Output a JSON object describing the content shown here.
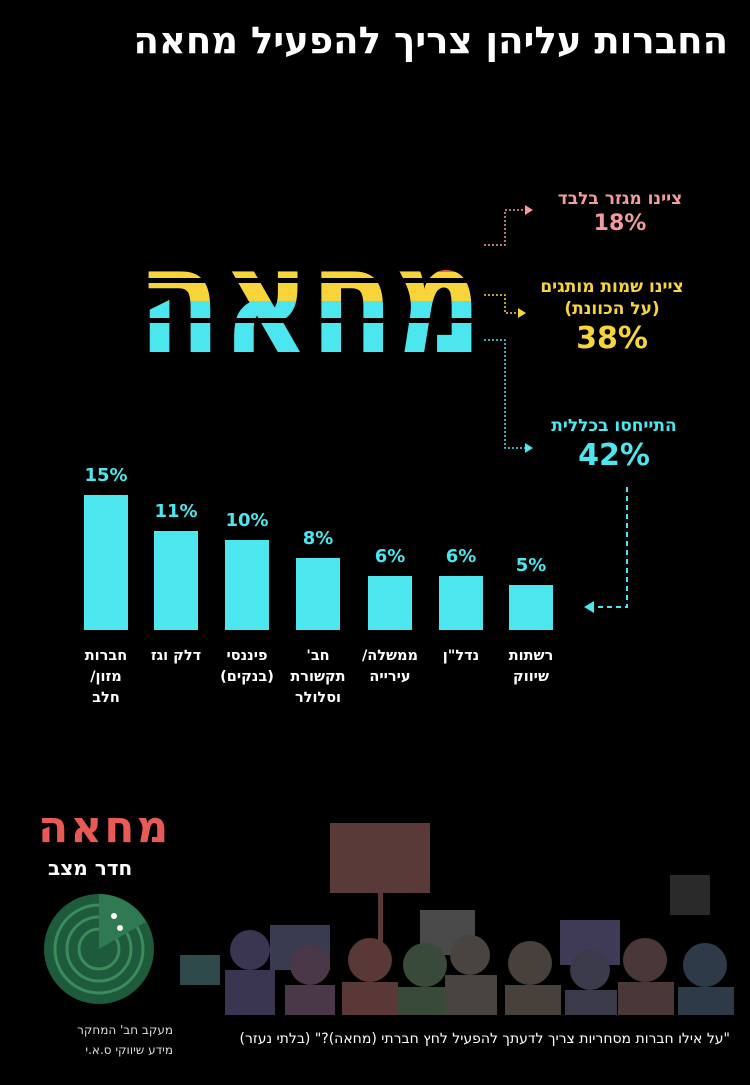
{
  "title": "החברות עליהן צריך להפעיל מחאה",
  "big_word": "מחאה",
  "callouts": {
    "sector": {
      "text": "ציינו מגזר בלבד",
      "value": "18%",
      "color": "#f39ca0"
    },
    "names": {
      "text": "ציינו שמות מותגים",
      "text2": "(על הכוונת)",
      "value": "38%",
      "color": "#f7d53a"
    },
    "general": {
      "text": "התייחסו בכללית",
      "value": "42%",
      "color": "#4be6ee"
    }
  },
  "chart_data": {
    "type": "bar",
    "categories": [
      "חברות מזון/ חלב",
      "דלק וגז",
      "פיננסי (בנקים)",
      "חב' תקשורת וסלולר",
      "ממשלה/ עירייה",
      "נדל\"ן",
      "רשתות שיווק"
    ],
    "values": [
      15,
      11,
      10,
      8,
      6,
      6,
      5
    ],
    "value_labels": [
      "15%",
      "11%",
      "10%",
      "8%",
      "6%",
      "6%",
      "5%"
    ],
    "category_lines": [
      [
        "חברות",
        "מזון/",
        "חלב"
      ],
      [
        "דלק וגז"
      ],
      [
        "פיננסי",
        "(בנקים)"
      ],
      [
        "חב'",
        "תקשורת",
        "וסלולר"
      ],
      [
        "ממשלה/",
        "עירייה"
      ],
      [
        "נדל\"ן"
      ],
      [
        "רשתות",
        "שיווק"
      ]
    ],
    "unit": "%",
    "color": "#4be6ee"
  },
  "logo": {
    "word": "מחאה",
    "sub": "חדר מצב"
  },
  "credit": {
    "line1": "מעקב חב' המחקר",
    "line2": "מידע שיווקי ס.א.י"
  },
  "question": "\"על אילו חברות מסחריות צריך לדעתך להפעיל לחץ חברתי (מחאה)?\" (בלתי נעזר)",
  "colors": {
    "red": "#f05a55",
    "yellow": "#f7d53a",
    "cyan": "#4be6ee",
    "background": "#000000"
  }
}
